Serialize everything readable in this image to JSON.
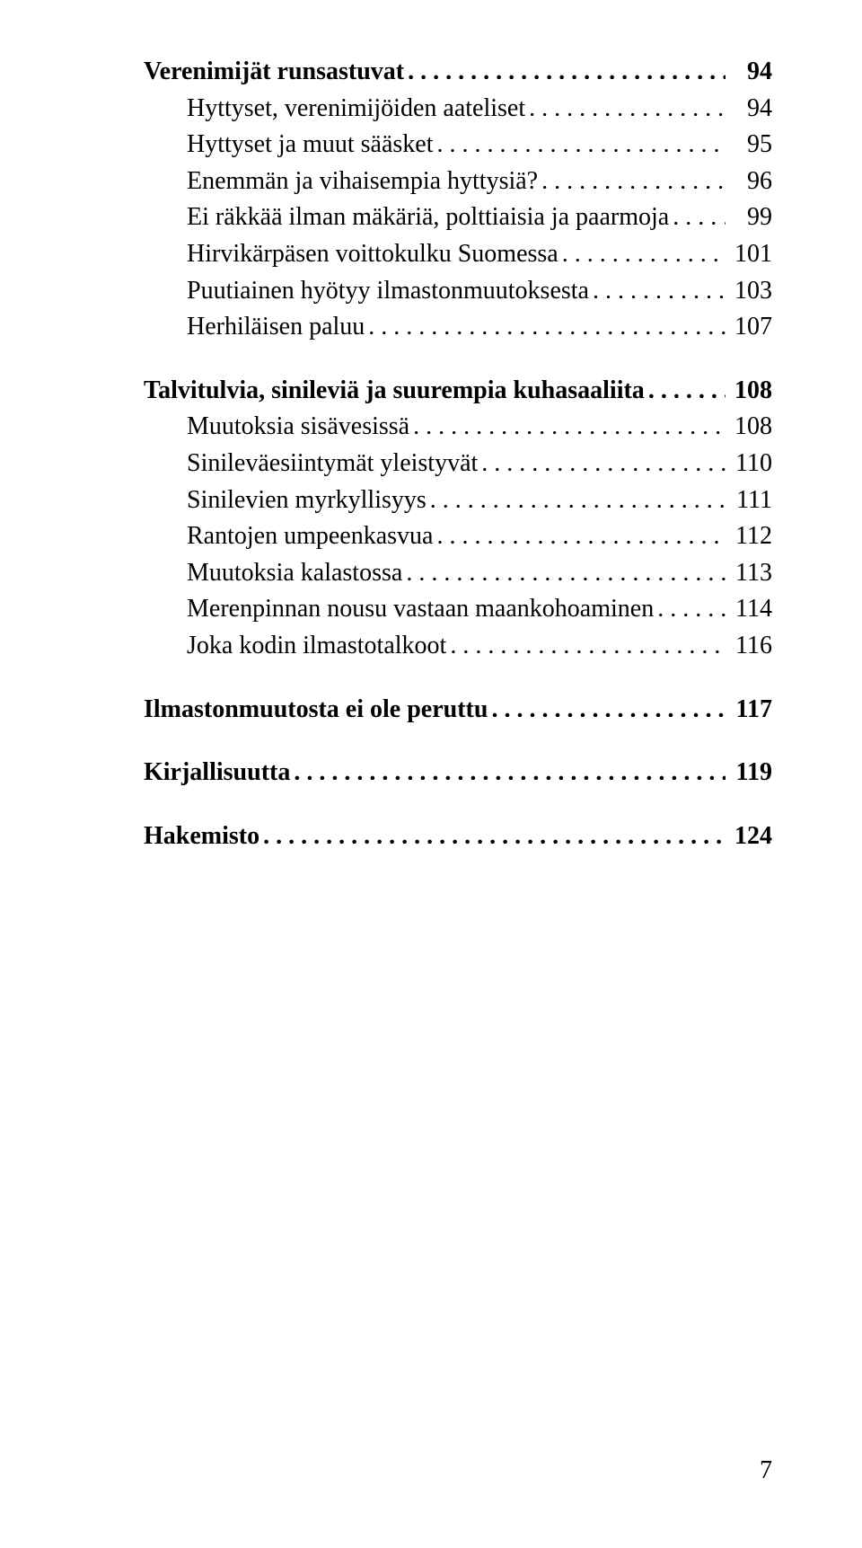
{
  "toc": [
    {
      "label": "Verenimijät runsastuvat",
      "page": "94",
      "bold": true,
      "indent": false
    },
    {
      "label": "Hyttyset, verenimijöiden aateliset",
      "page": "94",
      "bold": false,
      "indent": true
    },
    {
      "label": "Hyttyset ja muut sääsket",
      "page": "95",
      "bold": false,
      "indent": true
    },
    {
      "label": "Enemmän ja vihaisempia hyttysiä?",
      "page": "96",
      "bold": false,
      "indent": true
    },
    {
      "label": "Ei räkkää ilman mäkäriä, polttiaisia ja paarmoja",
      "page": "99",
      "bold": false,
      "indent": true
    },
    {
      "label": "Hirvikärpäsen voittokulku Suomessa",
      "page": "101",
      "bold": false,
      "indent": true
    },
    {
      "label": "Puutiainen hyötyy ilmastonmuutoksesta",
      "page": "103",
      "bold": false,
      "indent": true
    },
    {
      "label": "Herhiläisen paluu",
      "page": "107",
      "bold": false,
      "indent": true
    },
    {
      "gap": true
    },
    {
      "label": "Talvitulvia, sinileviä ja suurempia kuhasaaliita",
      "page": "108",
      "bold": true,
      "indent": false
    },
    {
      "label": "Muutoksia sisävesissä",
      "page": "108",
      "bold": false,
      "indent": true
    },
    {
      "label": "Sinileväesiintymät yleistyvät",
      "page": "110",
      "bold": false,
      "indent": true
    },
    {
      "label": "Sinilevien myrkyllisyys",
      "page": "111",
      "bold": false,
      "indent": true
    },
    {
      "label": "Rantojen umpeenkasvua",
      "page": "112",
      "bold": false,
      "indent": true
    },
    {
      "label": "Muutoksia kalastossa",
      "page": "113",
      "bold": false,
      "indent": true
    },
    {
      "label": "Merenpinnan nousu vastaan maankohoaminen",
      "page": "114",
      "bold": false,
      "indent": true
    },
    {
      "label": "Joka kodin ilmastotalkoot",
      "page": "116",
      "bold": false,
      "indent": true
    },
    {
      "gap": true
    },
    {
      "label": "Ilmastonmuutosta ei ole peruttu",
      "page": "117",
      "bold": true,
      "indent": false
    },
    {
      "gap": true
    },
    {
      "label": "Kirjallisuutta",
      "page": "119",
      "bold": true,
      "indent": false
    },
    {
      "gap": true
    },
    {
      "label": "Hakemisto",
      "page": "124",
      "bold": true,
      "indent": false
    }
  ],
  "footer_page": "7"
}
